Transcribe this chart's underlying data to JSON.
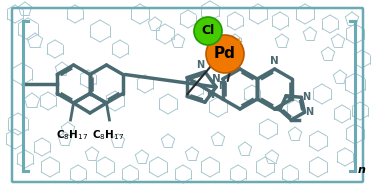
{
  "bg_color": "#ffffff",
  "border_color": "#6aaab5",
  "pd_color": "#f07800",
  "cl_color": "#44cc00",
  "pd_label": "Pd",
  "cl_label": "Cl",
  "c8h17_1": "C",
  "c8h17_sub1": "8",
  "c8h17_main1": "H",
  "c8h17_sub2": "17",
  "n_label": "n",
  "plus_color": "#e08000",
  "bracket_color": "#6aaab5",
  "structure_color": "#4a6a72",
  "structure_lw": 2.5,
  "bg_structure_color": "#a8c8d0",
  "bg_lw": 0.7
}
